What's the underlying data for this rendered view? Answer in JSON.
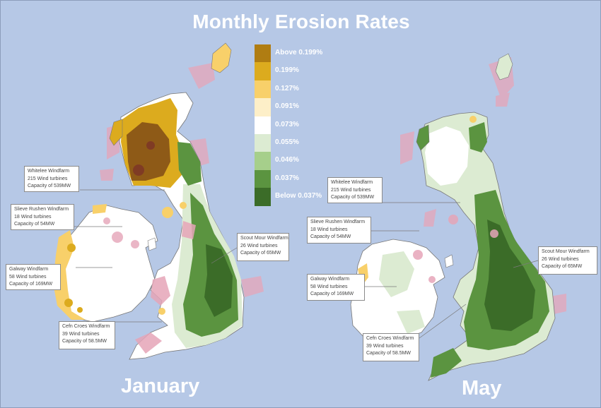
{
  "title": "Monthly Erosion Rates",
  "maps": [
    {
      "label": "January"
    },
    {
      "label": "May"
    }
  ],
  "legend": {
    "items": [
      {
        "label": "Above 0.199%",
        "color": "#b07d12"
      },
      {
        "label": "0.199%",
        "color": "#dcab1e"
      },
      {
        "label": "0.127%",
        "color": "#f8d06a"
      },
      {
        "label": "0.091%",
        "color": "#fdefc8"
      },
      {
        "label": "0.073%",
        "color": "#ffffff"
      },
      {
        "label": "0.055%",
        "color": "#dcebd2"
      },
      {
        "label": "0.046%",
        "color": "#a6cf8b"
      },
      {
        "label": "0.037%",
        "color": "#5b9440"
      },
      {
        "label": "Below 0.037%",
        "color": "#3b6c28"
      }
    ]
  },
  "windfarms_january": [
    {
      "name": "Whitelee Windfarm",
      "turbines": "215 Wind turbines",
      "capacity": "Capacity of 539MW"
    },
    {
      "name": "Slieve Rushen Windfarm",
      "turbines": "18 Wind turbines",
      "capacity": "Capacity of 54MW"
    },
    {
      "name": "Galway Windfarm",
      "turbines": "58 Wind turbines",
      "capacity": "Capacity of 169MW"
    },
    {
      "name": "Cefn Croes Windfarm",
      "turbines": "39 Wind turbines",
      "capacity": "Capacity of 58.5MW"
    },
    {
      "name": "Scout Mour Windfarm",
      "turbines": "26 Wind turbines",
      "capacity": "Capacity of 65MW"
    }
  ],
  "windfarms_may": [
    {
      "name": "Whitelee Windfarm",
      "turbines": "215 Wind turbines",
      "capacity": "Capacity of 539MW"
    },
    {
      "name": "Slieve Rushen Windfarm",
      "turbines": "18 Wind turbines",
      "capacity": "Capacity of 54MW"
    },
    {
      "name": "Galway Windfarm",
      "turbines": "58 Wind turbines",
      "capacity": "Capacity of 169MW"
    },
    {
      "name": "Cefn Croes Windfarm",
      "turbines": "39 Wind turbines",
      "capacity": "Capacity of 58.5MW"
    },
    {
      "name": "Scout Mour Windfarm",
      "turbines": "26 Wind turbines",
      "capacity": "Capacity of 65MW"
    }
  ]
}
